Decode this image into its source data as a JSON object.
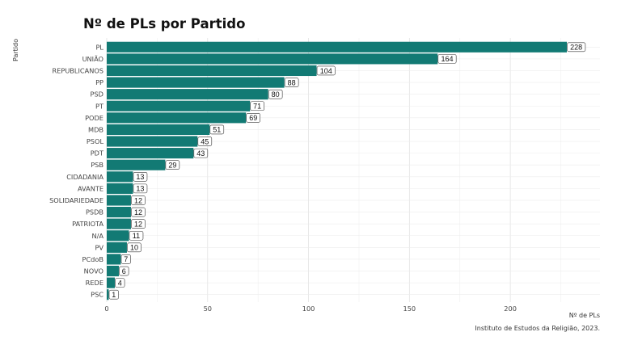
{
  "chart_data": {
    "type": "bar",
    "orientation": "horizontal",
    "title": "Nº de PLs por Partido",
    "xlabel": "Nº de PLs",
    "ylabel": "Partido",
    "caption": "Instituto de Estudos da Religião, 2023.",
    "categories": [
      "PL",
      "UNIÃO",
      "REPUBLICANOS",
      "PP",
      "PSD",
      "PT",
      "PODE",
      "MDB",
      "PSOL",
      "PDT",
      "PSB",
      "CIDADANIA",
      "AVANTE",
      "SOLIDARIEDADE",
      "PSDB",
      "PATRIOTA",
      "N/A",
      "PV",
      "PCdoB",
      "NOVO",
      "REDE",
      "PSC"
    ],
    "values": [
      228,
      164,
      104,
      88,
      80,
      71,
      69,
      51,
      45,
      43,
      29,
      13,
      13,
      12,
      12,
      12,
      11,
      10,
      7,
      6,
      4,
      1
    ],
    "xticks": [
      0,
      50,
      100,
      150,
      200
    ],
    "xlim": [
      0,
      240
    ],
    "grid": true,
    "legend": "none",
    "colors": {
      "bar": "#127a74",
      "grid": "#e6e6e6"
    }
  }
}
